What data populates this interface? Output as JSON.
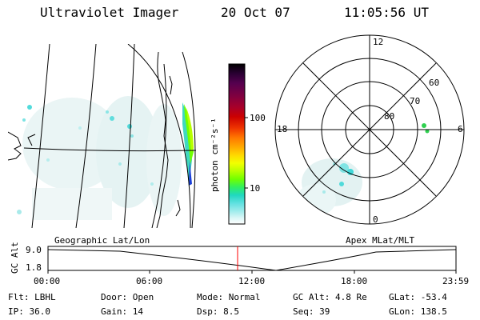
{
  "header": {
    "title": "Ultraviolet Imager",
    "date": "20 Oct 07",
    "time": "11:05:56 UT"
  },
  "colorbar": {
    "label": "photon cm⁻²s⁻¹",
    "ticks": [
      "100",
      "10"
    ],
    "colors": [
      "#000000",
      "#2a0033",
      "#55004f",
      "#800040",
      "#a8002a",
      "#cc0000",
      "#ee3300",
      "#ff7700",
      "#ffaa00",
      "#ffd800",
      "#f2ff00",
      "#b8ff00",
      "#70ff00",
      "#30f060",
      "#20d8c0",
      "#60e0e0",
      "#a0ecec",
      "#d8f6f6",
      "#ffffff"
    ]
  },
  "polar": {
    "lat_labels": [
      "80",
      "70",
      "60"
    ],
    "mlt_labels": {
      "top": "12",
      "left": "18",
      "right": "6",
      "bottom": "0"
    }
  },
  "map": {
    "label": "Geographic Lat/Lon"
  },
  "timeline": {
    "ylabel": "GC Alt",
    "yticks": [
      "9.0",
      "1.8"
    ],
    "xticks": [
      "00:00",
      "06:00",
      "12:00",
      "18:00",
      "23:59"
    ],
    "right_label": "Apex MLat/MLT",
    "marker_color": "#ff0000"
  },
  "info": {
    "rows": [
      [
        {
          "key": "Flt:",
          "value": "LBHL"
        },
        {
          "key": "Door:",
          "value": "Open"
        },
        {
          "key": "Mode:",
          "value": "Normal"
        },
        {
          "key": "GC Alt:",
          "value": "4.8 Re"
        },
        {
          "key": "GLat:",
          "value": "-53.4"
        }
      ],
      [
        {
          "key": "IP:",
          "value": "36.0"
        },
        {
          "key": "Gain:",
          "value": "14"
        },
        {
          "key": "Dsp:",
          "value": "8.5"
        },
        {
          "key": "Seq:",
          "value": "39"
        },
        {
          "key": "GLon:",
          "value": "138.5"
        }
      ]
    ]
  }
}
